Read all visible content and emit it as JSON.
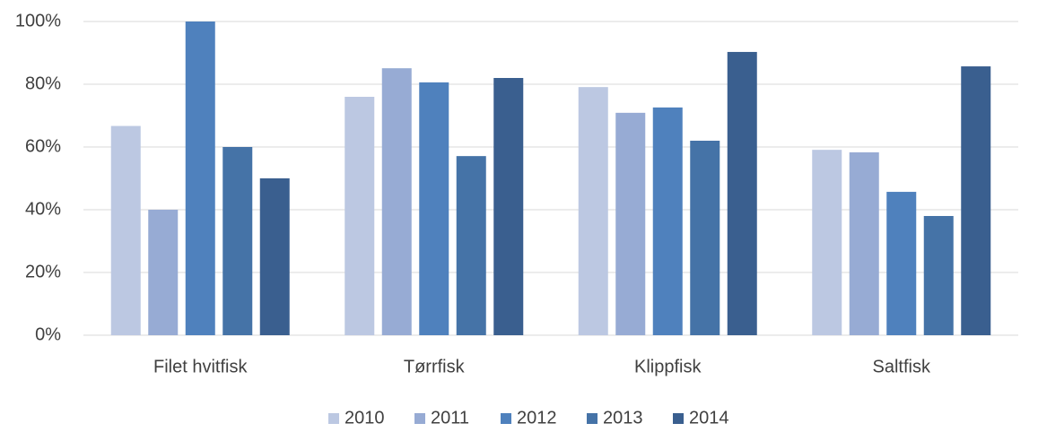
{
  "chart_data": {
    "type": "bar",
    "categories": [
      "Filet hvitfisk",
      "Tørrfisk",
      "Klippfisk",
      "Saltfisk"
    ],
    "series": [
      {
        "name": "2010",
        "color": "#bcc8e2",
        "values": [
          66.7,
          76,
          79.1,
          59.1
        ]
      },
      {
        "name": "2011",
        "color": "#97abd4",
        "values": [
          40,
          85.1,
          70.9,
          58.3
        ]
      },
      {
        "name": "2012",
        "color": "#4f81bd",
        "values": [
          100,
          80.6,
          72.6,
          45.7
        ]
      },
      {
        "name": "2013",
        "color": "#4573a7",
        "values": [
          60,
          57.1,
          62,
          38
        ]
      },
      {
        "name": "2014",
        "color": "#3a5f8f",
        "values": [
          50,
          82,
          90.3,
          85.7
        ]
      }
    ],
    "ylim": [
      0,
      100
    ],
    "yticks": [
      {
        "value": 0,
        "label": "0%"
      },
      {
        "value": 20,
        "label": "20%"
      },
      {
        "value": 40,
        "label": "40%"
      },
      {
        "value": 60,
        "label": "60%"
      },
      {
        "value": 80,
        "label": "80%"
      },
      {
        "value": 100,
        "label": "100%"
      }
    ],
    "grid": true,
    "legend": "bottom"
  }
}
